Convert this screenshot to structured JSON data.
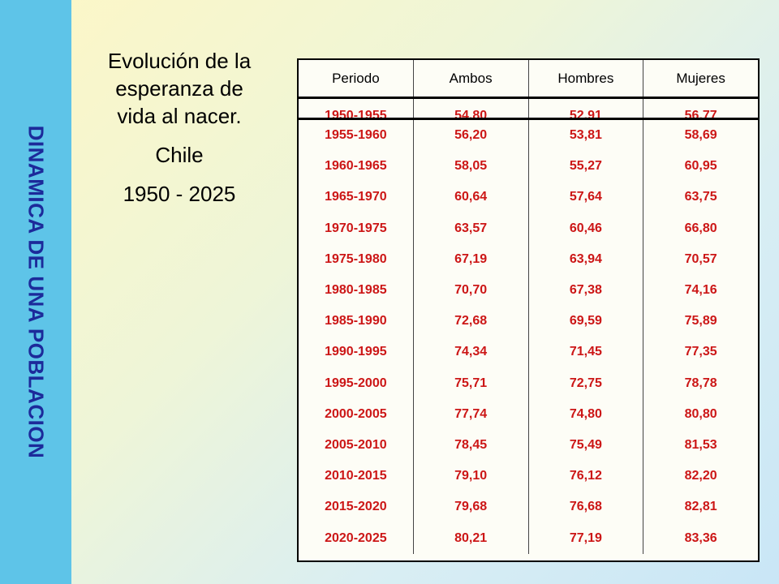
{
  "side_title": "DINAMICA DE UNA POBLACION",
  "title": {
    "line1": "Evolución de la",
    "line2": "esperanza de",
    "line3": "vida al nacer.",
    "subtitle": "Chile",
    "years": "1950 - 2025"
  },
  "colors": {
    "side_band": "#5ec4e8",
    "side_title": "#1c2a9a",
    "cell_text": "#cc1616"
  },
  "table": {
    "headers": [
      "Periodo",
      "Ambos",
      "Hombres",
      "Mujeres"
    ],
    "first_row": [
      "1950-1955",
      "54,80",
      "52,91",
      "56,77"
    ],
    "rows": [
      [
        "1955-1960",
        "56,20",
        "53,81",
        "58,69"
      ],
      [
        "1960-1965",
        "58,05",
        "55,27",
        "60,95"
      ],
      [
        "1965-1970",
        "60,64",
        "57,64",
        "63,75"
      ],
      [
        "1970-1975",
        "63,57",
        "60,46",
        "66,80"
      ],
      [
        "1975-1980",
        "67,19",
        "63,94",
        "70,57"
      ],
      [
        "1980-1985",
        "70,70",
        "67,38",
        "74,16"
      ],
      [
        "1985-1990",
        "72,68",
        "69,59",
        "75,89"
      ],
      [
        "1990-1995",
        "74,34",
        "71,45",
        "77,35"
      ],
      [
        "1995-2000",
        "75,71",
        "72,75",
        "78,78"
      ],
      [
        "2000-2005",
        "77,74",
        "74,80",
        "80,80"
      ],
      [
        "2005-2010",
        "78,45",
        "75,49",
        "81,53"
      ],
      [
        "2010-2015",
        "79,10",
        "76,12",
        "82,20"
      ],
      [
        "2015-2020",
        "79,68",
        "76,68",
        "82,81"
      ],
      [
        "2020-2025",
        "80,21",
        "77,19",
        "83,36"
      ]
    ]
  }
}
